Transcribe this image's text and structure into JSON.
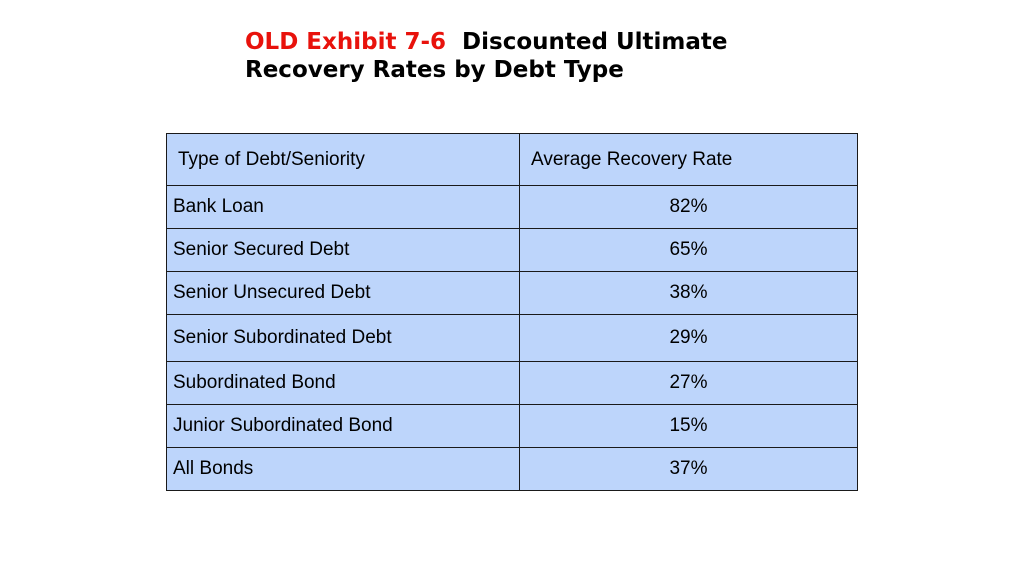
{
  "title": {
    "label": "OLD Exhibit 7-6",
    "line1_rest": "Discounted Ultimate",
    "line2": "Recovery Rates by Debt Type"
  },
  "table": {
    "headers": [
      "Type of Debt/Seniority",
      "Average Recovery Rate"
    ],
    "rows": [
      [
        "Bank Loan",
        "82%"
      ],
      [
        "Senior Secured Debt",
        "65%"
      ],
      [
        "Senior Unsecured Debt",
        "38%"
      ],
      [
        "Senior Subordinated Debt",
        "29%"
      ],
      [
        "Subordinated Bond",
        "27%"
      ],
      [
        "Junior Subordinated Bond",
        "15%"
      ],
      [
        "All Bonds",
        "37%"
      ]
    ]
  },
  "colors": {
    "label_red": "#e8120c",
    "cell_fill": "#bdd5fb",
    "border": "#1a1a1a"
  }
}
